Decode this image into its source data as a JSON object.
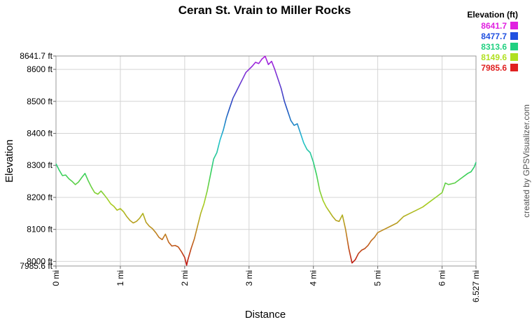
{
  "chart_data": {
    "type": "line",
    "title": "Ceran St. Vrain to Miller Rocks",
    "xlabel": "Distance",
    "ylabel": "Elevation",
    "xlim": [
      0,
      6.527
    ],
    "ylim": [
      7985.6,
      8641.7
    ],
    "y_ticks": [
      {
        "value": 8641.7,
        "label": "8641.7 ft"
      },
      {
        "value": 8600,
        "label": "8600 ft"
      },
      {
        "value": 8500,
        "label": "8500 ft"
      },
      {
        "value": 8400,
        "label": "8400 ft"
      },
      {
        "value": 8300,
        "label": "8300 ft"
      },
      {
        "value": 8200,
        "label": "8200 ft"
      },
      {
        "value": 8100,
        "label": "8100 ft"
      },
      {
        "value": 8000,
        "label": "8000 ft"
      },
      {
        "value": 7985.6,
        "label": "7985.6 ft"
      }
    ],
    "x_ticks": [
      {
        "value": 0,
        "label": "0 mi"
      },
      {
        "value": 1,
        "label": "1 mi"
      },
      {
        "value": 2,
        "label": "2 mi"
      },
      {
        "value": 3,
        "label": "3 mi"
      },
      {
        "value": 4,
        "label": "4 mi"
      },
      {
        "value": 5,
        "label": "5 mi"
      },
      {
        "value": 6,
        "label": "6 mi"
      },
      {
        "value": 6.527,
        "label": "6.527 mi"
      }
    ],
    "grid": true,
    "legend": {
      "title": "Elevation (ft)",
      "placement": "top-right",
      "entries": [
        {
          "label": "8641.7",
          "color": "#e020e0"
        },
        {
          "label": "8477.7",
          "color": "#2050e0"
        },
        {
          "label": "8313.6",
          "color": "#20d080"
        },
        {
          "label": "8149.6",
          "color": "#b0e020"
        },
        {
          "label": "7985.6",
          "color": "#e02020"
        }
      ]
    },
    "series": [
      {
        "x": [
          0,
          0.05,
          0.1,
          0.15,
          0.2,
          0.25,
          0.3,
          0.35,
          0.4,
          0.45,
          0.5,
          0.55,
          0.6,
          0.65,
          0.7,
          0.75,
          0.8,
          0.85,
          0.9,
          0.95,
          1.0,
          1.05,
          1.1,
          1.15,
          1.2,
          1.25,
          1.3,
          1.35,
          1.4,
          1.45,
          1.5,
          1.55,
          1.6,
          1.65,
          1.7,
          1.75,
          1.8,
          1.85,
          1.9,
          1.95,
          2.0,
          2.03,
          2.05,
          2.1,
          2.15,
          2.2,
          2.25,
          2.3,
          2.35,
          2.4,
          2.45,
          2.5,
          2.55,
          2.6,
          2.65,
          2.7,
          2.75,
          2.8,
          2.85,
          2.9,
          2.95,
          3.0,
          3.05,
          3.1,
          3.15,
          3.2,
          3.25,
          3.3,
          3.35,
          3.4,
          3.45,
          3.5,
          3.55,
          3.6,
          3.65,
          3.7,
          3.75,
          3.8,
          3.85,
          3.9,
          3.95,
          4.0,
          4.05,
          4.1,
          4.15,
          4.2,
          4.25,
          4.3,
          4.35,
          4.4,
          4.45,
          4.5,
          4.55,
          4.6,
          4.65,
          4.7,
          4.75,
          4.8,
          4.85,
          4.9,
          4.95,
          5.0,
          5.1,
          5.2,
          5.3,
          5.4,
          5.5,
          5.6,
          5.7,
          5.8,
          5.9,
          6.0,
          6.05,
          6.1,
          6.2,
          6.3,
          6.4,
          6.45,
          6.5,
          6.527
        ],
        "y": [
          8305,
          8285,
          8268,
          8270,
          8258,
          8250,
          8240,
          8248,
          8262,
          8275,
          8252,
          8232,
          8215,
          8210,
          8220,
          8208,
          8195,
          8180,
          8172,
          8160,
          8165,
          8155,
          8140,
          8128,
          8120,
          8125,
          8135,
          8150,
          8122,
          8110,
          8102,
          8090,
          8075,
          8068,
          8085,
          8060,
          8048,
          8050,
          8045,
          8030,
          8012,
          7988,
          8005,
          8040,
          8070,
          8110,
          8150,
          8180,
          8220,
          8270,
          8320,
          8340,
          8380,
          8410,
          8450,
          8480,
          8510,
          8530,
          8550,
          8570,
          8590,
          8600,
          8610,
          8622,
          8618,
          8632,
          8641,
          8615,
          8625,
          8600,
          8570,
          8540,
          8500,
          8470,
          8440,
          8425,
          8430,
          8400,
          8370,
          8350,
          8340,
          8310,
          8270,
          8220,
          8190,
          8170,
          8155,
          8140,
          8128,
          8125,
          8145,
          8100,
          8040,
          7995,
          8005,
          8025,
          8035,
          8040,
          8050,
          8065,
          8075,
          8090,
          8100,
          8110,
          8120,
          8140,
          8150,
          8160,
          8170,
          8185,
          8200,
          8215,
          8245,
          8240,
          8245,
          8260,
          8275,
          8280,
          8295,
          8310
        ]
      }
    ]
  },
  "credit": "created by GPSVisualizer.com"
}
